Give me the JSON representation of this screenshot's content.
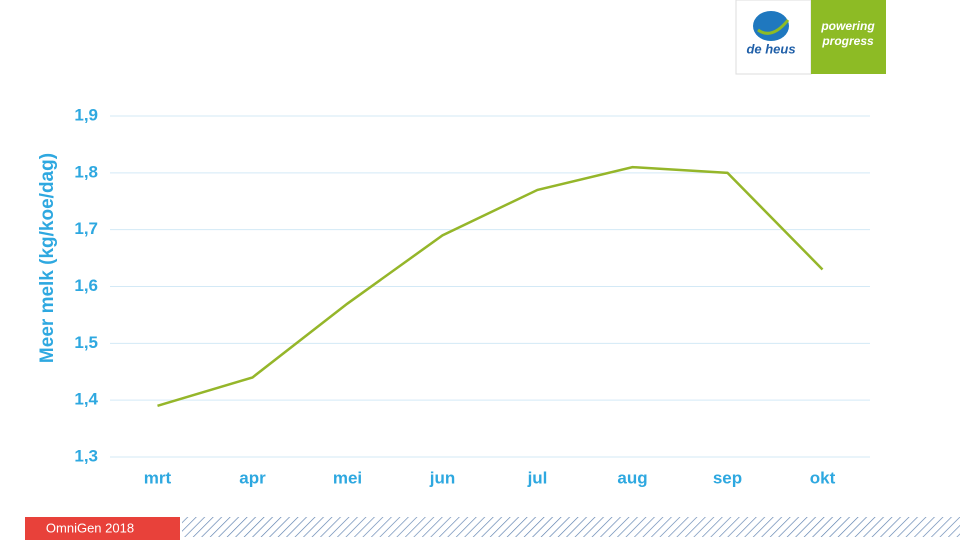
{
  "chart_data": {
    "type": "line",
    "y_label": "Meer melk (kg/koe/dag)",
    "categories": [
      "mrt",
      "apr",
      "mei",
      "jun",
      "jul",
      "aug",
      "sep",
      "okt"
    ],
    "series": [
      {
        "name": "Meer melk",
        "color": "#95b62a",
        "values": [
          1.39,
          1.44,
          1.57,
          1.69,
          1.77,
          1.81,
          1.8,
          1.63
        ]
      }
    ],
    "ylim": [
      1.3,
      1.9
    ],
    "yticks": [
      {
        "value": 1.3,
        "label": "1,3"
      },
      {
        "value": 1.4,
        "label": "1,4"
      },
      {
        "value": 1.5,
        "label": "1,5"
      },
      {
        "value": 1.6,
        "label": "1,6"
      },
      {
        "value": 1.7,
        "label": "1,7"
      },
      {
        "value": 1.8,
        "label": "1,8"
      },
      {
        "value": 1.9,
        "label": "1,9"
      }
    ],
    "grid": true
  },
  "logo": {
    "brand": "de heus",
    "slogan_1": "powering",
    "slogan_2": "progress"
  },
  "footer": "OmniGen 2018"
}
